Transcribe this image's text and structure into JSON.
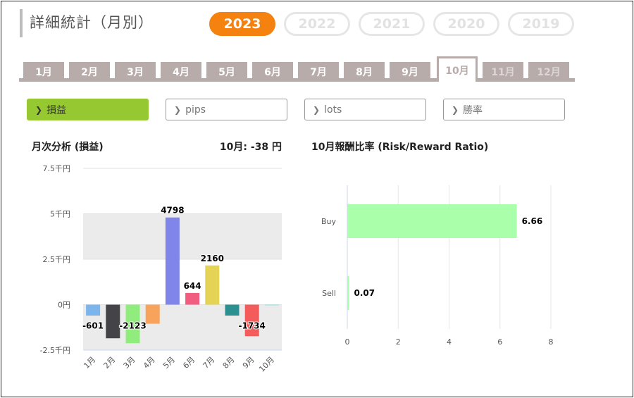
{
  "header": {
    "title": "詳細統計（月別）"
  },
  "years": [
    {
      "label": "2023",
      "active": true
    },
    {
      "label": "2022",
      "active": false
    },
    {
      "label": "2021",
      "active": false
    },
    {
      "label": "2020",
      "active": false
    },
    {
      "label": "2019",
      "active": false
    }
  ],
  "months": [
    {
      "label": "1月",
      "state": "normal"
    },
    {
      "label": "2月",
      "state": "normal"
    },
    {
      "label": "3月",
      "state": "normal"
    },
    {
      "label": "4月",
      "state": "normal"
    },
    {
      "label": "5月",
      "state": "normal"
    },
    {
      "label": "6月",
      "state": "normal"
    },
    {
      "label": "7月",
      "state": "normal"
    },
    {
      "label": "8月",
      "state": "normal"
    },
    {
      "label": "9月",
      "state": "normal"
    },
    {
      "label": "10月",
      "state": "active"
    },
    {
      "label": "11月",
      "state": "disabled"
    },
    {
      "label": "12月",
      "state": "disabled"
    }
  ],
  "filters": [
    {
      "label": "損益",
      "active": true
    },
    {
      "label": "pips",
      "active": false
    },
    {
      "label": "lots",
      "active": false
    },
    {
      "label": "勝率",
      "active": false
    }
  ],
  "monthly_panel": {
    "title": "月次分析 (損益)",
    "summary": "10月:  -38 円"
  },
  "rr_panel": {
    "title": "10月報酬比率 (Risk/Reward Ratio)"
  },
  "chart_data": [
    {
      "type": "bar",
      "categories": [
        "1月",
        "2月",
        "3月",
        "4月",
        "5月",
        "6月",
        "7月",
        "8月",
        "9月",
        "10月"
      ],
      "values": [
        -601,
        -1850,
        -2123,
        -1050,
        4798,
        644,
        2160,
        -600,
        -1734,
        -38
      ],
      "data_labels": [
        "-601",
        "",
        "-2123",
        "",
        "4798",
        "644",
        "2160",
        "",
        "-1734",
        ""
      ],
      "colors": [
        "#7cb5ec",
        "#434348",
        "#90ed7d",
        "#f7a35c",
        "#8085e9",
        "#f15c80",
        "#e4d354",
        "#2b908f",
        "#f45b5b",
        "#91e8e1"
      ],
      "y_ticks": [
        {
          "value": 7500,
          "label": "7.5千円"
        },
        {
          "value": 5000,
          "label": "5千円"
        },
        {
          "value": 2500,
          "label": "2.5千円"
        },
        {
          "value": 0,
          "label": "0円"
        },
        {
          "value": -2500,
          "label": "-2.5千円"
        }
      ],
      "ylim": [
        -2500,
        7500
      ]
    },
    {
      "type": "bar",
      "orientation": "horizontal",
      "categories": [
        "Buy",
        "Sell"
      ],
      "values": [
        6.66,
        0.07
      ],
      "data_labels": [
        "6.66",
        "0.07"
      ],
      "colors": [
        "#aaffaa",
        "#aaffaa"
      ],
      "x_ticks": [
        "0",
        "2",
        "4",
        "6",
        "8"
      ],
      "xlim": [
        0,
        8
      ]
    }
  ]
}
